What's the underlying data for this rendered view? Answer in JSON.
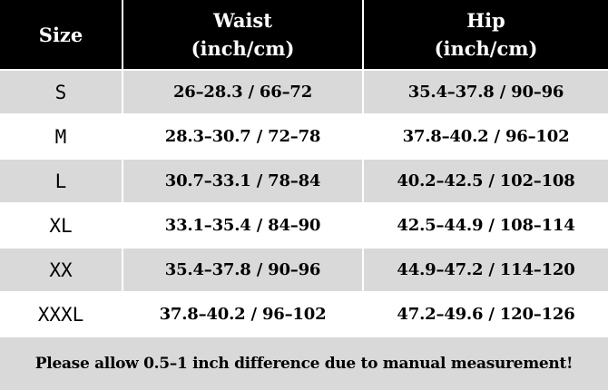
{
  "header": {
    "size": "Size",
    "waist_line1": "Waist",
    "waist_line2": "(inch/cm)",
    "hip_line1": "Hip",
    "hip_line2": "(inch/cm)"
  },
  "rows": [
    {
      "size": "S",
      "waist": "26–28.3 / 66–72",
      "hip": "35.4–37.8 / 90–96"
    },
    {
      "size": "M",
      "waist": "28.3–30.7 / 72–78",
      "hip": "37.8–40.2 / 96–102"
    },
    {
      "size": "L",
      "waist": "30.7–33.1 / 78–84",
      "hip": "40.2–42.5 / 102–108"
    },
    {
      "size": "XL",
      "waist": "33.1–35.4 / 84–90",
      "hip": "42.5–44.9 / 108–114"
    },
    {
      "size": "XX",
      "waist": "35.4–37.8 / 90–96",
      "hip": "44.9–47.2 / 114–120"
    },
    {
      "size": "XXXL",
      "waist": "37.8–40.2 / 96–102",
      "hip": "47.2–49.6 / 120–126"
    }
  ],
  "footer_note": "Please allow 0.5–1 inch difference due to manual measurement!",
  "colors": {
    "header_bg": "#000000",
    "header_text": "#ffffff",
    "shaded_row": "#d9d9d9",
    "plain_row": "#ffffff"
  }
}
